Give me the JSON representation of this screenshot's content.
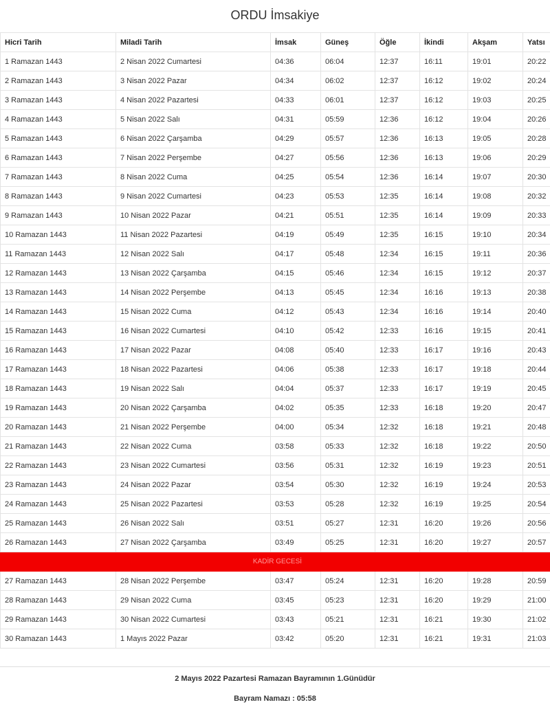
{
  "header": {
    "title": "ORDU İmsakiye"
  },
  "table": {
    "columns": [
      "Hicri Tarih",
      "Miladi Tarih",
      "İmsak",
      "Güneş",
      "Öğle",
      "İkindi",
      "Akşam",
      "Yatsı"
    ],
    "rows_before": [
      [
        "1 Ramazan 1443",
        "2 Nisan 2022 Cumartesi",
        "04:36",
        "06:04",
        "12:37",
        "16:11",
        "19:01",
        "20:22"
      ],
      [
        "2 Ramazan 1443",
        "3 Nisan 2022 Pazar",
        "04:34",
        "06:02",
        "12:37",
        "16:12",
        "19:02",
        "20:24"
      ],
      [
        "3 Ramazan 1443",
        "4 Nisan 2022 Pazartesi",
        "04:33",
        "06:01",
        "12:37",
        "16:12",
        "19:03",
        "20:25"
      ],
      [
        "4 Ramazan 1443",
        "5 Nisan 2022 Salı",
        "04:31",
        "05:59",
        "12:36",
        "16:12",
        "19:04",
        "20:26"
      ],
      [
        "5 Ramazan 1443",
        "6 Nisan 2022 Çarşamba",
        "04:29",
        "05:57",
        "12:36",
        "16:13",
        "19:05",
        "20:28"
      ],
      [
        "6 Ramazan 1443",
        "7 Nisan 2022 Perşembe",
        "04:27",
        "05:56",
        "12:36",
        "16:13",
        "19:06",
        "20:29"
      ],
      [
        "7 Ramazan 1443",
        "8 Nisan 2022 Cuma",
        "04:25",
        "05:54",
        "12:36",
        "16:14",
        "19:07",
        "20:30"
      ],
      [
        "8 Ramazan 1443",
        "9 Nisan 2022 Cumartesi",
        "04:23",
        "05:53",
        "12:35",
        "16:14",
        "19:08",
        "20:32"
      ],
      [
        "9 Ramazan 1443",
        "10 Nisan 2022 Pazar",
        "04:21",
        "05:51",
        "12:35",
        "16:14",
        "19:09",
        "20:33"
      ],
      [
        "10 Ramazan 1443",
        "11 Nisan 2022 Pazartesi",
        "04:19",
        "05:49",
        "12:35",
        "16:15",
        "19:10",
        "20:34"
      ],
      [
        "11 Ramazan 1443",
        "12 Nisan 2022 Salı",
        "04:17",
        "05:48",
        "12:34",
        "16:15",
        "19:11",
        "20:36"
      ],
      [
        "12 Ramazan 1443",
        "13 Nisan 2022 Çarşamba",
        "04:15",
        "05:46",
        "12:34",
        "16:15",
        "19:12",
        "20:37"
      ],
      [
        "13 Ramazan 1443",
        "14 Nisan 2022 Perşembe",
        "04:13",
        "05:45",
        "12:34",
        "16:16",
        "19:13",
        "20:38"
      ],
      [
        "14 Ramazan 1443",
        "15 Nisan 2022 Cuma",
        "04:12",
        "05:43",
        "12:34",
        "16:16",
        "19:14",
        "20:40"
      ],
      [
        "15 Ramazan 1443",
        "16 Nisan 2022 Cumartesi",
        "04:10",
        "05:42",
        "12:33",
        "16:16",
        "19:15",
        "20:41"
      ],
      [
        "16 Ramazan 1443",
        "17 Nisan 2022 Pazar",
        "04:08",
        "05:40",
        "12:33",
        "16:17",
        "19:16",
        "20:43"
      ],
      [
        "17 Ramazan 1443",
        "18 Nisan 2022 Pazartesi",
        "04:06",
        "05:38",
        "12:33",
        "16:17",
        "19:18",
        "20:44"
      ],
      [
        "18 Ramazan 1443",
        "19 Nisan 2022 Salı",
        "04:04",
        "05:37",
        "12:33",
        "16:17",
        "19:19",
        "20:45"
      ],
      [
        "19 Ramazan 1443",
        "20 Nisan 2022 Çarşamba",
        "04:02",
        "05:35",
        "12:33",
        "16:18",
        "19:20",
        "20:47"
      ],
      [
        "20 Ramazan 1443",
        "21 Nisan 2022 Perşembe",
        "04:00",
        "05:34",
        "12:32",
        "16:18",
        "19:21",
        "20:48"
      ],
      [
        "21 Ramazan 1443",
        "22 Nisan 2022 Cuma",
        "03:58",
        "05:33",
        "12:32",
        "16:18",
        "19:22",
        "20:50"
      ],
      [
        "22 Ramazan 1443",
        "23 Nisan 2022 Cumartesi",
        "03:56",
        "05:31",
        "12:32",
        "16:19",
        "19:23",
        "20:51"
      ],
      [
        "23 Ramazan 1443",
        "24 Nisan 2022 Pazar",
        "03:54",
        "05:30",
        "12:32",
        "16:19",
        "19:24",
        "20:53"
      ],
      [
        "24 Ramazan 1443",
        "25 Nisan 2022 Pazartesi",
        "03:53",
        "05:28",
        "12:32",
        "16:19",
        "19:25",
        "20:54"
      ],
      [
        "25 Ramazan 1443",
        "26 Nisan 2022 Salı",
        "03:51",
        "05:27",
        "12:31",
        "16:20",
        "19:26",
        "20:56"
      ],
      [
        "26 Ramazan 1443",
        "27 Nisan 2022 Çarşamba",
        "03:49",
        "05:25",
        "12:31",
        "16:20",
        "19:27",
        "20:57"
      ]
    ],
    "banner": "KADİR GECESİ",
    "rows_after": [
      [
        "27 Ramazan 1443",
        "28 Nisan 2022 Perşembe",
        "03:47",
        "05:24",
        "12:31",
        "16:20",
        "19:28",
        "20:59"
      ],
      [
        "28 Ramazan 1443",
        "29 Nisan 2022 Cuma",
        "03:45",
        "05:23",
        "12:31",
        "16:20",
        "19:29",
        "21:00"
      ],
      [
        "29 Ramazan 1443",
        "30 Nisan 2022 Cumartesi",
        "03:43",
        "05:21",
        "12:31",
        "16:21",
        "19:30",
        "21:02"
      ],
      [
        "30 Ramazan 1443",
        "1 Mayıs 2022 Pazar",
        "03:42",
        "05:20",
        "12:31",
        "16:21",
        "19:31",
        "21:03"
      ]
    ]
  },
  "footer": {
    "note": "2 Mayıs 2022 Pazartesi Ramazan Bayramının 1.Günüdür",
    "prayer": "Bayram Namazı : 05:58"
  }
}
